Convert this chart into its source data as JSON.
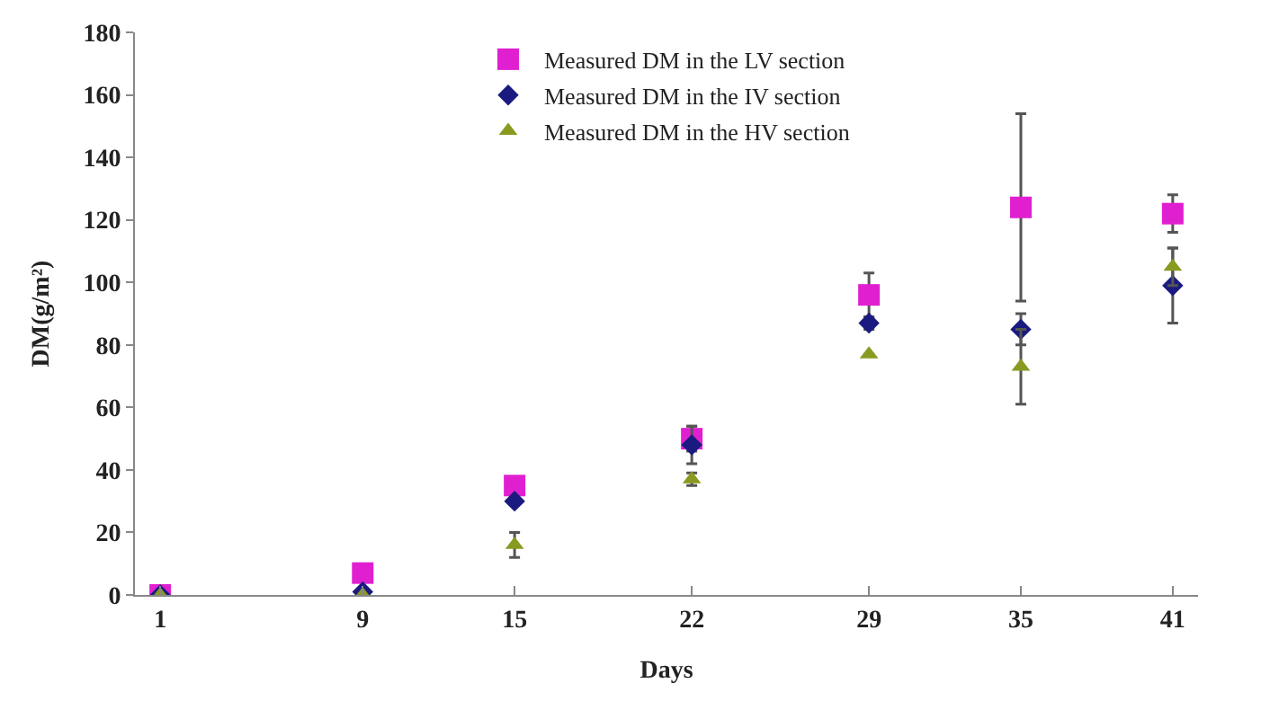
{
  "chart_data": {
    "type": "scatter",
    "xlabel": "Days",
    "ylabel": "DM(g/m²)",
    "x": [
      1,
      9,
      15,
      22,
      29,
      35,
      41
    ],
    "xlim": [
      0,
      42
    ],
    "xticks": [
      1,
      9,
      15,
      22,
      29,
      35,
      41
    ],
    "ylim": [
      0,
      180
    ],
    "yticks": [
      0,
      20,
      40,
      60,
      80,
      100,
      120,
      140,
      160,
      180
    ],
    "legend": "top",
    "series": [
      {
        "name": "Measured DM in the LV section",
        "color": "#e020d0",
        "marker": "square",
        "values": [
          0,
          7,
          35,
          50,
          96,
          124,
          122
        ],
        "errors": [
          null,
          null,
          null,
          4,
          7,
          30,
          6
        ]
      },
      {
        "name": "Measured DM in the IV section",
        "color": "#1a1a80",
        "marker": "diamond",
        "values": [
          0,
          1,
          30,
          48,
          87,
          85,
          99
        ],
        "errors": [
          null,
          null,
          null,
          6,
          2,
          5,
          12
        ]
      },
      {
        "name": "Measured DM in the HV section",
        "color": "#8a9a20",
        "marker": "triangle",
        "values": [
          0,
          0,
          16,
          37,
          77,
          73,
          105
        ],
        "errors": [
          null,
          null,
          4,
          2,
          null,
          12,
          6
        ]
      }
    ]
  }
}
